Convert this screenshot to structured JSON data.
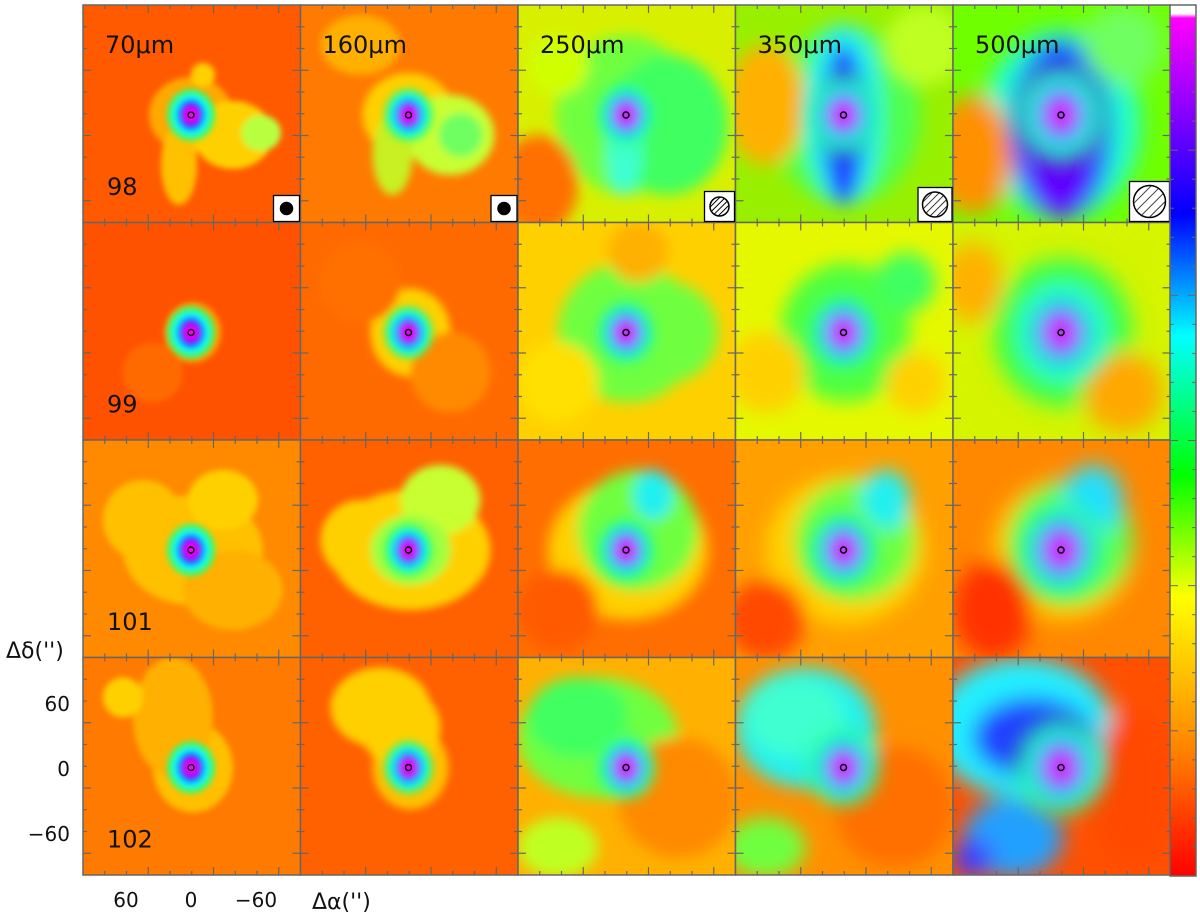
{
  "figure": {
    "wavelengths": [
      "70μm",
      "160μm",
      "250μm",
      "350μm",
      "500μm"
    ],
    "sources": [
      "98",
      "99",
      "101",
      "102"
    ],
    "y_axis": {
      "label": "Δδ('')",
      "ticks": [
        "60",
        "0",
        "−60"
      ]
    },
    "x_axis": {
      "label": "Δα('')",
      "ticks": [
        "60",
        "0",
        "−60"
      ]
    },
    "beam_symbols": [
      {
        "wavelength": "70μm",
        "style": "filled"
      },
      {
        "wavelength": "160μm",
        "style": "filled"
      },
      {
        "wavelength": "250μm",
        "style": "dense-hatch"
      },
      {
        "wavelength": "350μm",
        "style": "hatch"
      },
      {
        "wavelength": "500μm",
        "style": "sparse-hatch"
      }
    ],
    "colorbar": {
      "orientation": "vertical",
      "colors_bottom_to_top": [
        "#ff0000",
        "#ff7f00",
        "#ffff00",
        "#00ff00",
        "#00ffff",
        "#0000ff",
        "#8000ff",
        "#ff00ff",
        "#ffffff"
      ]
    },
    "colors": {
      "frame": "#666666",
      "marker": "#000000"
    }
  }
}
